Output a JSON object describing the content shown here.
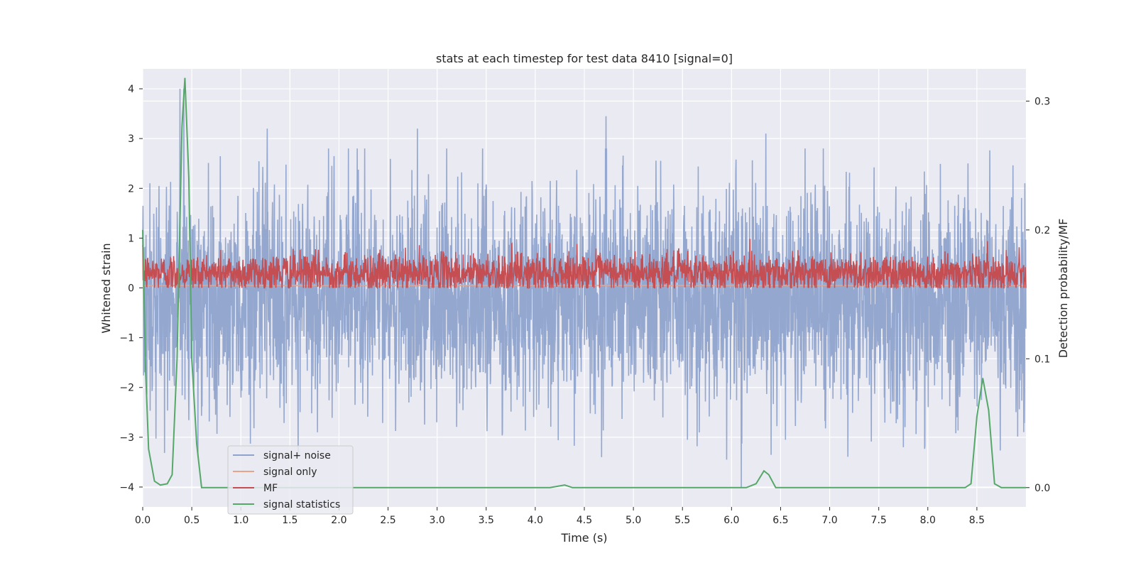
{
  "chart_data": {
    "type": "line",
    "title": "stats at each timestep for test data 8410 [signal=0]",
    "xlabel": "Time (s)",
    "ylabel_left": "Whitened strain",
    "ylabel_right": "Detection probability/MF",
    "xlim": [
      0.0,
      9.0
    ],
    "ylim_left": [
      -4.4,
      4.4
    ],
    "ylim_right": [
      -0.015,
      0.325
    ],
    "x_ticks": [
      "0.0",
      "0.5",
      "1.0",
      "1.5",
      "2.0",
      "2.5",
      "3.0",
      "3.5",
      "4.0",
      "4.5",
      "5.0",
      "5.5",
      "6.0",
      "6.5",
      "7.0",
      "7.5",
      "8.0",
      "8.5"
    ],
    "y_ticks_left": [
      "4",
      "3",
      "2",
      "1",
      "0",
      "−1",
      "−2",
      "−3",
      "−4"
    ],
    "y_ticks_right": [
      "0.3",
      "0.2",
      "0.1",
      "0.0"
    ],
    "grid": true,
    "legend_position": "lower-left",
    "series": [
      {
        "name": "signal+ noise",
        "axis": "left",
        "color": "#8fa3cc",
        "kind": "noise_band",
        "typical_low": -1.5,
        "typical_high": 1.05,
        "envelope_min": -4.0,
        "envelope_max": 4.0,
        "notable_peaks": [
          [
            0.38,
            4.0
          ],
          [
            0.42,
            4.0
          ],
          [
            1.27,
            3.2
          ],
          [
            2.8,
            3.2
          ],
          [
            4.72,
            3.45
          ],
          [
            6.35,
            3.1
          ],
          [
            1.78,
            -2.9
          ],
          [
            5.55,
            -3.05
          ],
          [
            5.95,
            -3.45
          ],
          [
            6.1,
            -4.0
          ],
          [
            6.55,
            -3.05
          ],
          [
            7.75,
            -3.2
          ]
        ]
      },
      {
        "name": "signal only",
        "axis": "left",
        "color": "#e8a48a",
        "x": [
          0.0,
          9.0
        ],
        "y": [
          0.05,
          0.05
        ]
      },
      {
        "name": "MF",
        "axis": "left",
        "color": "#c44e52",
        "kind": "noise_band",
        "typical_low": 0.05,
        "typical_high": 0.55,
        "envelope_min": 0.0,
        "envelope_max": 1.0
      },
      {
        "name": "signal statistics",
        "axis": "right",
        "color": "#55a868",
        "x": [
          0.0,
          0.03,
          0.06,
          0.12,
          0.18,
          0.25,
          0.3,
          0.35,
          0.4,
          0.43,
          0.47,
          0.5,
          0.55,
          0.6,
          1.0,
          1.5,
          2.0,
          2.5,
          3.0,
          3.5,
          4.0,
          4.15,
          4.3,
          4.38,
          4.5,
          5.0,
          5.5,
          6.0,
          6.15,
          6.25,
          6.33,
          6.38,
          6.45,
          6.55,
          7.0,
          7.5,
          8.0,
          8.38,
          8.44,
          8.5,
          8.56,
          8.62,
          8.68,
          8.75,
          9.0
        ],
        "y": [
          0.2,
          0.09,
          0.03,
          0.005,
          0.002,
          0.003,
          0.01,
          0.1,
          0.28,
          0.318,
          0.24,
          0.1,
          0.034,
          0.0,
          0.0,
          0.0,
          0.0,
          0.0,
          0.0,
          0.0,
          0.0,
          0.0,
          0.002,
          0.0,
          0.0,
          0.0,
          0.0,
          0.0,
          0.0,
          0.003,
          0.013,
          0.01,
          0.0,
          0.0,
          0.0,
          0.0,
          0.0,
          0.0,
          0.003,
          0.055,
          0.085,
          0.06,
          0.003,
          0.0,
          0.0
        ]
      }
    ]
  }
}
